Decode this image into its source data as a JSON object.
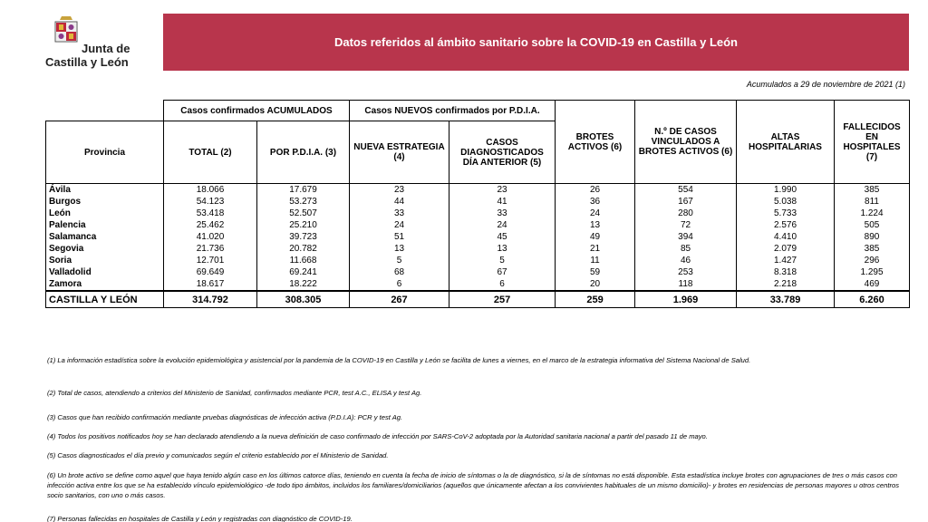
{
  "header": {
    "logo_line1": "Junta de",
    "logo_line2": "Castilla y León",
    "title": "Datos referidos al ámbito sanitario sobre la COVID-19 en Castilla y León"
  },
  "date_note": "Acumulados a 29 de noviembre de 2021 (1)",
  "table": {
    "group_headers": [
      "Casos confirmados ACUMULADOS",
      "Casos NUEVOS confirmados por P.D.I.A."
    ],
    "columns": [
      "Provincia",
      "TOTAL (2)",
      "POR P.D.I.A. (3)",
      "NUEVA ESTRATEGIA (4)",
      "CASOS DIAGNOSTICADOS DÍA ANTERIOR (5)",
      "BROTES ACTIVOS (6)",
      "N.º DE CASOS VINCULADOS A BROTES ACTIVOS (6)",
      "ALTAS HOSPITALARIAS",
      "FALLECIDOS EN HOSPITALES (7)"
    ],
    "rows": [
      [
        "Ávila",
        "18.066",
        "17.679",
        "23",
        "23",
        "26",
        "554",
        "1.990",
        "385"
      ],
      [
        "Burgos",
        "54.123",
        "53.273",
        "44",
        "41",
        "36",
        "167",
        "5.038",
        "811"
      ],
      [
        "León",
        "53.418",
        "52.507",
        "33",
        "33",
        "24",
        "280",
        "5.733",
        "1.224"
      ],
      [
        "Palencia",
        "25.462",
        "25.210",
        "24",
        "24",
        "13",
        "72",
        "2.576",
        "505"
      ],
      [
        "Salamanca",
        "41.020",
        "39.723",
        "51",
        "45",
        "49",
        "394",
        "4.410",
        "890"
      ],
      [
        "Segovia",
        "21.736",
        "20.782",
        "13",
        "13",
        "21",
        "85",
        "2.079",
        "385"
      ],
      [
        "Soria",
        "12.701",
        "11.668",
        "5",
        "5",
        "11",
        "46",
        "1.427",
        "296"
      ],
      [
        "Valladolid",
        "69.649",
        "69.241",
        "68",
        "67",
        "59",
        "253",
        "8.318",
        "1.295"
      ],
      [
        "Zamora",
        "18.617",
        "18.222",
        "6",
        "6",
        "20",
        "118",
        "2.218",
        "469"
      ]
    ],
    "total": [
      "CASTILLA Y LEÓN",
      "314.792",
      "308.305",
      "267",
      "257",
      "259",
      "1.969",
      "33.789",
      "6.260"
    ]
  },
  "footnotes": [
    "(1) La información estadística sobre la evolución epidemiológica y asistencial por la pandemia de la COVID-19 en Castilla y León se facilita de lunes a viernes, en el marco de la estrategia informativa del Sistema Nacional de Salud.",
    "(2) Total de casos, atendiendo a criterios del Ministerio de Sanidad, confirmados mediante PCR, test A.C., ELISA y test Ag.",
    "(3) Casos que han recibido confirmación mediante pruebas diagnósticas de infección activa (P.D.I.A): PCR y test Ag.",
    "(4) Todos los positivos notificados hoy se han declarado atendiendo a la nueva definición de caso confirmado de infección por SARS-CoV-2 adoptada por la Autoridad sanitaria nacional a partir del pasado 11 de mayo.",
    "(5) Casos diagnosticados el día previo y comunicados según el criterio establecido por el Ministerio de Sanidad.",
    "(6) Un brote activo se define como aquel que haya tenido algún caso en los últimos catorce días, teniendo en cuenta la fecha de inicio de síntomas o la de diagnóstico, si la de síntomas no está disponible. Esta estadística incluye brotes con agrupaciones de tres o más casos con infección activa entre los que se ha establecido vínculo epidemiológico -de todo tipo ámbitos, incluidos los familiares/domiciliarios (aquellos que únicamente afectan a los convivientes habituales de un mismo domicilio)- y brotes en residencias de personas mayores u otros centros socio sanitarios, con uno o más casos.",
    "(7) Personas fallecidas en hospitales de Castilla y León y registradas con diagnóstico de COVID-19."
  ]
}
